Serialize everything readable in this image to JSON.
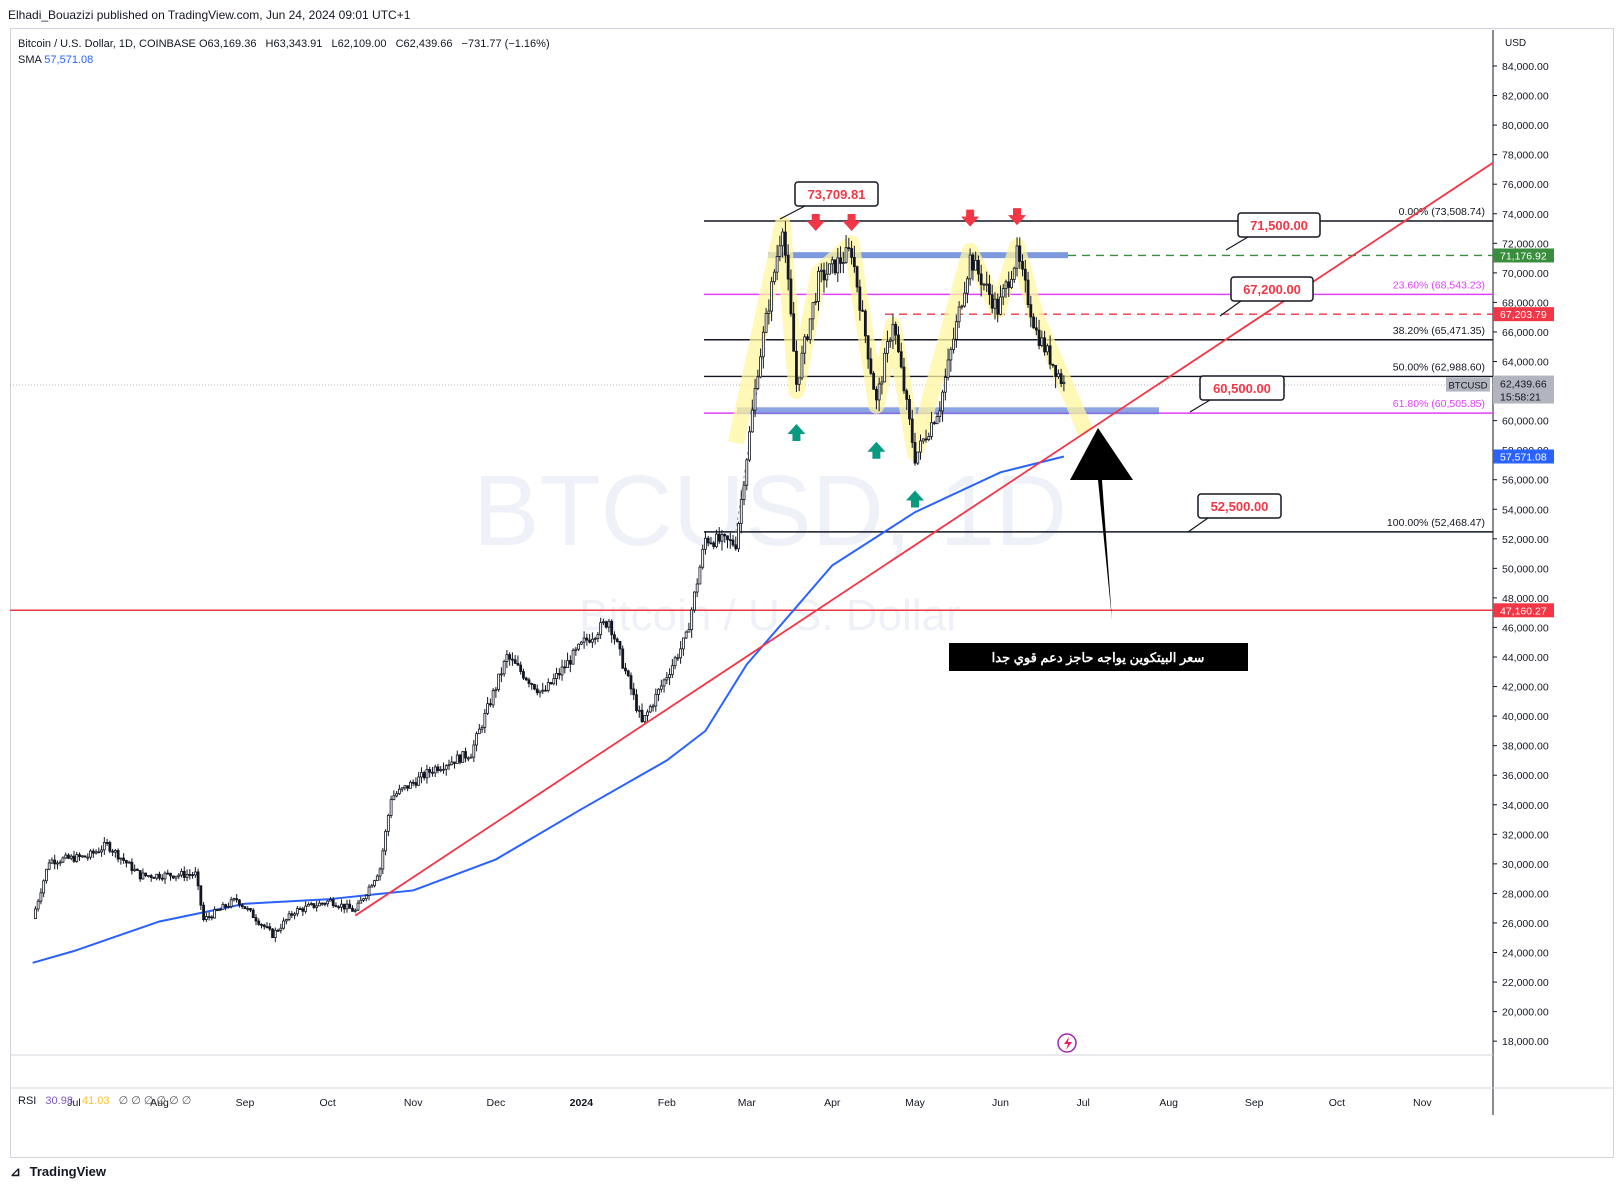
{
  "header": "Elhadi_Bouazizi published on TradingView.com, Jun 24, 2024 09:01 UTC+1",
  "legend": {
    "symbol": "Bitcoin / U.S. Dollar, 1D, COINBASE",
    "open": "O63,169.36",
    "high": "H63,343.91",
    "low": "L62,109.00",
    "close": "C62,439.66",
    "change": "−731.77 (−1.16%)",
    "sma_label": "SMA",
    "sma_value": "57,571.08"
  },
  "watermark": {
    "line1": "BTCUSD, 1D",
    "line2": "Bitcoin / U.S. Dollar"
  },
  "currency": "USD",
  "rsi": {
    "label": "RSI",
    "v1": "30.98",
    "v2": "41.03",
    "na": "∅ ∅ ∅ ∅ ∅ ∅"
  },
  "footer_brand": "TradingView",
  "annotation_text": "سعر البيتكوين يواجه حاجز دعم قوي جدا",
  "colors": {
    "up": "#131722",
    "red": "#f23645",
    "green": "#089981",
    "blue": "#2962ff",
    "magenta": "#e040fb",
    "price_tag": "#b2b5be"
  },
  "chart_data": {
    "type": "candlestick",
    "x_labels": [
      "Jul",
      "Aug",
      "Sep",
      "Oct",
      "Nov",
      "Dec",
      "2024",
      "Feb",
      "Mar",
      "Apr",
      "May",
      "Jun",
      "Jul",
      "Aug",
      "Sep",
      "Oct",
      "Nov"
    ],
    "y_ticks": [
      18000,
      20000,
      22000,
      24000,
      26000,
      28000,
      30000,
      32000,
      34000,
      36000,
      38000,
      40000,
      42000,
      44000,
      46000,
      48000,
      50000,
      52000,
      54000,
      56000,
      58000,
      60000,
      62000,
      64000,
      66000,
      68000,
      70000,
      72000,
      74000,
      76000,
      78000,
      80000,
      82000,
      84000
    ],
    "y_tick_labels": [
      "18,000.00",
      "20,000.00",
      "22,000.00",
      "24,000.00",
      "26,000.00",
      "28,000.00",
      "30,000.00",
      "32,000.00",
      "34,000.00",
      "36,000.00",
      "38,000.00",
      "40,000.00",
      "42,000.00",
      "44,000.00",
      "46,000.00",
      "48,000.00",
      "50,000.00",
      "52,000.00",
      "54,000.00",
      "56,000.00",
      "58,000.00",
      "60,000.00",
      "62,000.00",
      "64,000.00",
      "66,000.00",
      "68,000.00",
      "70,000.00",
      "72,000.00",
      "74,000.00",
      "76,000.00",
      "78,000.00",
      "80,000.00",
      "82,000.00",
      "84,000.00"
    ],
    "ylim": [
      16500,
      85500
    ],
    "price_path": [
      {
        "d": "2023-06-16",
        "p": 26300
      },
      {
        "d": "2023-06-22",
        "p": 30200
      },
      {
        "d": "2023-07-06",
        "p": 30500
      },
      {
        "d": "2023-07-13",
        "p": 31300
      },
      {
        "d": "2023-07-25",
        "p": 29200
      },
      {
        "d": "2023-08-14",
        "p": 29300
      },
      {
        "d": "2023-08-17",
        "p": 26200
      },
      {
        "d": "2023-08-29",
        "p": 27600
      },
      {
        "d": "2023-09-11",
        "p": 25200
      },
      {
        "d": "2023-09-19",
        "p": 26800
      },
      {
        "d": "2023-10-02",
        "p": 27500
      },
      {
        "d": "2023-10-11",
        "p": 26800
      },
      {
        "d": "2023-10-20",
        "p": 29700
      },
      {
        "d": "2023-10-24",
        "p": 34500
      },
      {
        "d": "2023-11-09",
        "p": 36500
      },
      {
        "d": "2023-11-22",
        "p": 37500
      },
      {
        "d": "2023-12-05",
        "p": 44000
      },
      {
        "d": "2023-12-18",
        "p": 41500
      },
      {
        "d": "2024-01-02",
        "p": 45000
      },
      {
        "d": "2024-01-11",
        "p": 46500
      },
      {
        "d": "2024-01-23",
        "p": 39500
      },
      {
        "d": "2024-02-08",
        "p": 45300
      },
      {
        "d": "2024-02-15",
        "p": 52000
      },
      {
        "d": "2024-02-26",
        "p": 51700
      },
      {
        "d": "2024-03-05",
        "p": 63500
      },
      {
        "d": "2024-03-14",
        "p": 73400
      },
      {
        "d": "2024-03-19",
        "p": 62500
      },
      {
        "d": "2024-03-27",
        "p": 69500
      },
      {
        "d": "2024-04-08",
        "p": 71500
      },
      {
        "d": "2024-04-17",
        "p": 61200
      },
      {
        "d": "2024-04-23",
        "p": 66800
      },
      {
        "d": "2024-05-01",
        "p": 57500
      },
      {
        "d": "2024-05-10",
        "p": 61000
      },
      {
        "d": "2024-05-21",
        "p": 71000
      },
      {
        "d": "2024-05-31",
        "p": 67500
      },
      {
        "d": "2024-06-07",
        "p": 71200
      },
      {
        "d": "2024-06-14",
        "p": 66000
      },
      {
        "d": "2024-06-24",
        "p": 62440
      }
    ],
    "sma": {
      "name": "SMA",
      "value": 57571.08
    },
    "fibonacci": [
      {
        "level": "0.00%",
        "price": 73508.74,
        "label": "0.00% (73,508.74)"
      },
      {
        "level": "23.60%",
        "price": 68543.23,
        "label": "23.60% (68,543.23)"
      },
      {
        "level": "38.20%",
        "price": 65471.35,
        "label": "38.20% (65,471.35)"
      },
      {
        "level": "50.00%",
        "price": 62988.6,
        "label": "50.00% (62,988.60)"
      },
      {
        "level": "61.80%",
        "price": 60505.85,
        "label": "61.80% (60,505.85)"
      },
      {
        "level": "100.00%",
        "price": 52468.47,
        "label": "100.00% (52,468.47)"
      }
    ],
    "callouts": [
      "73,709.81",
      "71,500.00",
      "67,200.00",
      "60,500.00",
      "52,500.00"
    ],
    "price_tags": [
      {
        "price": 71176.92,
        "label": "71,176.92",
        "color": "#388e3c"
      },
      {
        "price": 67203.79,
        "label": "67,203.79",
        "color": "#f23645"
      },
      {
        "price": 62439.66,
        "label": "62,439.66",
        "symbol": "BTCUSD",
        "timer": "15:58:21",
        "color": "#b2b5be"
      },
      {
        "price": 57571.08,
        "label": "57,571.08",
        "color": "#2962ff"
      },
      {
        "price": 47160.27,
        "label": "47,160.27",
        "color": "#f23645"
      }
    ],
    "horizontal_lines": [
      {
        "price": 47160.27,
        "color": "#f23645"
      },
      {
        "price": 71176.92,
        "color": "#388e3c",
        "dashed": true
      },
      {
        "price": 67203.79,
        "color": "#f23645",
        "dashed": true
      }
    ],
    "trendline": {
      "from": {
        "d": "2023-10-11",
        "p": 26500
      },
      "to": {
        "d": "2024-11-27",
        "p": 77500
      },
      "color": "#f23645"
    }
  }
}
